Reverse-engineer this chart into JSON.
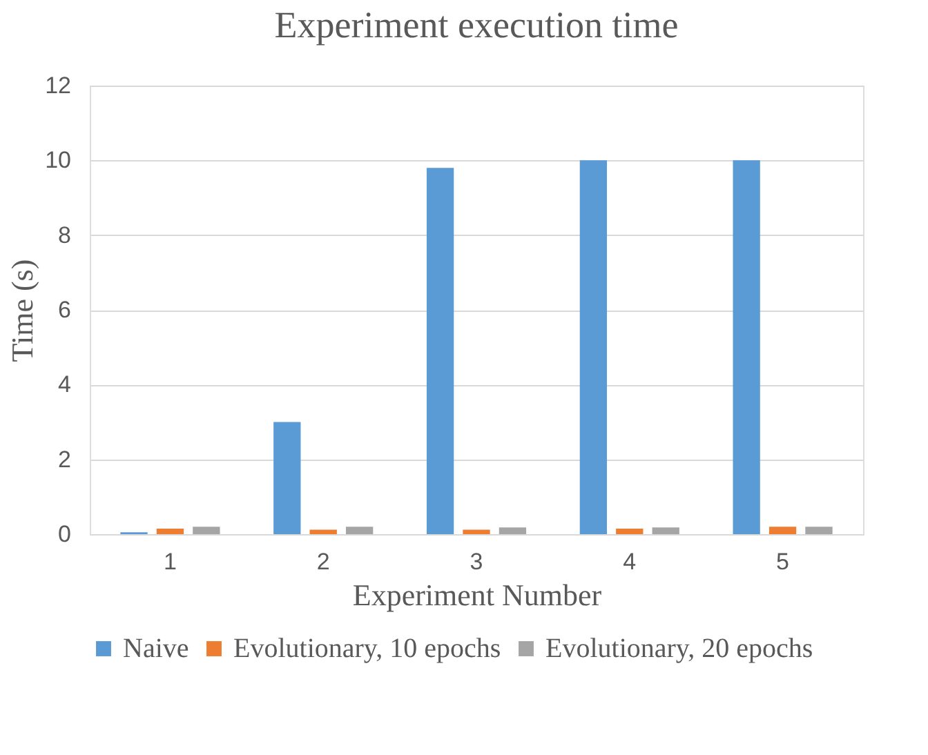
{
  "chart_data": {
    "type": "bar",
    "title": "Experiment execution time",
    "xlabel": "Experiment Number",
    "ylabel": "Time (s)",
    "categories": [
      "1",
      "2",
      "3",
      "4",
      "5"
    ],
    "series": [
      {
        "name": "Naive",
        "color": "#5b9bd5",
        "values": [
          0.05,
          3.0,
          9.8,
          10.0,
          10.0
        ]
      },
      {
        "name": "Evolutionary, 10 epochs",
        "color": "#ed7d31",
        "values": [
          0.15,
          0.12,
          0.12,
          0.15,
          0.2
        ]
      },
      {
        "name": "Evolutionary, 20 epochs",
        "color": "#a5a5a5",
        "values": [
          0.2,
          0.2,
          0.18,
          0.18,
          0.2
        ]
      }
    ],
    "ylim": [
      0,
      12
    ],
    "yticks": [
      0,
      2,
      4,
      6,
      8,
      10,
      12
    ],
    "grid": "y",
    "legend": "bottom"
  }
}
